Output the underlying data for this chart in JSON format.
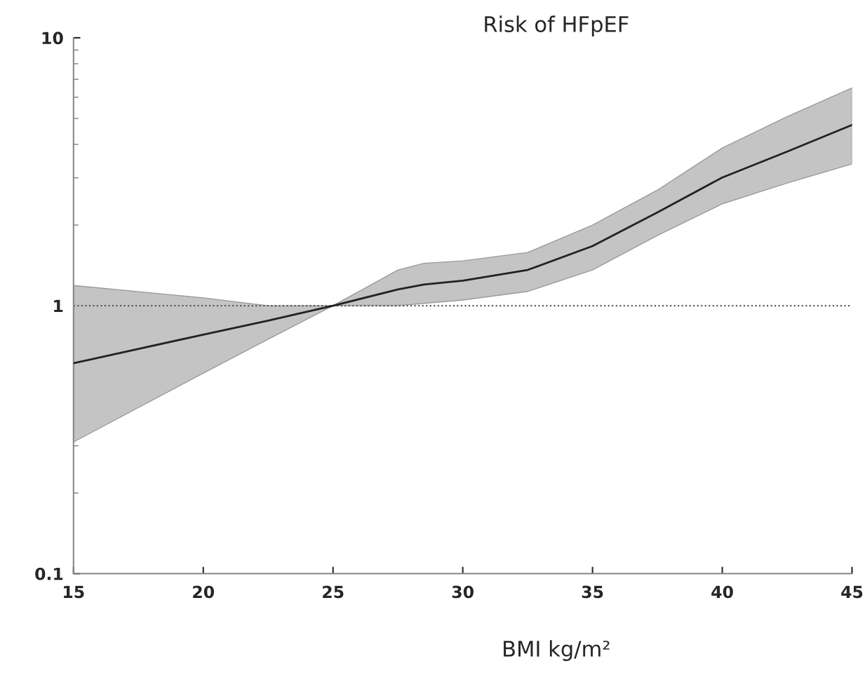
{
  "chart_data": {
    "type": "line",
    "title": "Risk of HFpEF",
    "xlabel": "BMI kg/m²",
    "log": "y",
    "x": [
      15,
      20,
      22.5,
      25,
      27.5,
      28.5,
      30,
      32.5,
      35,
      37.5,
      40,
      42.5,
      45
    ],
    "series": [
      {
        "color": "#222222",
        "values": [
          0.61,
          0.78,
          0.88,
          1,
          1.15,
          1.2,
          1.24,
          1.36,
          1.67,
          2.23,
          3.01,
          3.76,
          4.73
        ],
        "lower": [
          0.31,
          0.56,
          0.75,
          1,
          1.0,
          1.02,
          1.05,
          1.13,
          1.36,
          1.83,
          2.4,
          2.87,
          3.38
        ],
        "upper": [
          1.19,
          1.07,
          1.0,
          1,
          1.36,
          1.44,
          1.47,
          1.58,
          2.0,
          2.7,
          3.88,
          5.08,
          6.5
        ]
      }
    ],
    "xlim": [
      15,
      45
    ],
    "xticks": [
      15,
      20,
      25,
      30,
      35,
      40,
      45
    ],
    "ylim": [
      0.1,
      10
    ],
    "yticks": [
      0.1,
      1,
      10
    ],
    "ref_lines": [
      {
        "axis": "y",
        "value": 1,
        "line_style": "dotted",
        "color": "#555555"
      }
    ],
    "grid": false,
    "legend": false,
    "marker": "none",
    "line_style": "solid"
  }
}
